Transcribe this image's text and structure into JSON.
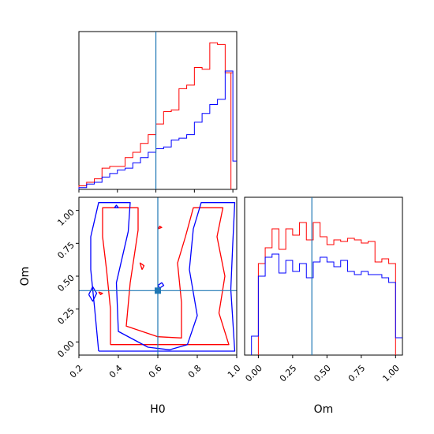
{
  "colors": {
    "red": "#ff0000",
    "blue": "#0000ff",
    "truth": "#1f77b4"
  },
  "chart_data": [
    {
      "type": "step-histogram",
      "panel": "H0 marginal",
      "title": "",
      "xlabel": "",
      "ylabel": "",
      "xlim": [
        0.2,
        1.02
      ],
      "truth_x": 0.6,
      "bin_edges": [
        0.2,
        0.24,
        0.28,
        0.32,
        0.36,
        0.4,
        0.44,
        0.48,
        0.52,
        0.56,
        0.6,
        0.64,
        0.68,
        0.72,
        0.76,
        0.8,
        0.84,
        0.88,
        0.92,
        0.96,
        1.0
      ],
      "series": [
        {
          "color": "red",
          "values": [
            2,
            4,
            6,
            12,
            13,
            13,
            18,
            21,
            26,
            31,
            37,
            44,
            45,
            57,
            59,
            69,
            68,
            83,
            82,
            66
          ]
        },
        {
          "color": "blue",
          "values": [
            1,
            3,
            4,
            7,
            9,
            11,
            12,
            15,
            18,
            21,
            23,
            24,
            28,
            29,
            31,
            38,
            43,
            48,
            51,
            67
          ]
        }
      ],
      "tail": {
        "red_edge_x": 0.99,
        "blue_tail_x": [
          1.0,
          1.02
        ],
        "blue_tail_value": 16
      }
    },
    {
      "type": "contour",
      "panel": "H0 vs Om",
      "xlabel": "H0",
      "ylabel": "Om",
      "xlim": [
        0.2,
        1.0
      ],
      "ylim": [
        -0.1,
        1.1
      ],
      "xticks": [
        "0.2",
        "0.4",
        "0.6",
        "0.8",
        "1.0"
      ],
      "yticks": [
        "0.00",
        "0.25",
        "0.50",
        "0.75",
        "1.00"
      ],
      "truth": {
        "x": 0.6,
        "y": 0.39
      },
      "contours": [
        {
          "color": "red",
          "points": [
            [
              0.36,
              -0.02
            ],
            [
              0.36,
              0.25
            ],
            [
              0.34,
              0.55
            ],
            [
              0.32,
              0.8
            ],
            [
              0.32,
              1.02
            ],
            [
              0.5,
              1.02
            ],
            [
              0.5,
              0.85
            ],
            [
              0.46,
              0.45
            ],
            [
              0.44,
              0.12
            ],
            [
              0.6,
              0.04
            ],
            [
              0.72,
              0.03
            ],
            [
              0.72,
              0.3
            ],
            [
              0.7,
              0.6
            ],
            [
              0.74,
              0.8
            ],
            [
              0.78,
              1.02
            ],
            [
              0.93,
              1.02
            ],
            [
              0.9,
              0.8
            ],
            [
              0.94,
              0.5
            ],
            [
              0.91,
              0.22
            ],
            [
              0.96,
              -0.02
            ],
            [
              0.36,
              -0.02
            ]
          ]
        },
        {
          "color": "red",
          "points": [
            [
              0.3,
              0.38
            ],
            [
              0.32,
              0.37
            ],
            [
              0.31,
              0.36
            ],
            [
              0.3,
              0.38
            ]
          ]
        },
        {
          "color": "red",
          "points": [
            [
              0.52,
              0.55
            ],
            [
              0.53,
              0.58
            ],
            [
              0.51,
              0.6
            ],
            [
              0.52,
              0.55
            ]
          ]
        },
        {
          "color": "red",
          "points": [
            [
              0.6,
              0.86
            ],
            [
              0.62,
              0.87
            ],
            [
              0.61,
              0.88
            ],
            [
              0.6,
              0.86
            ]
          ]
        },
        {
          "color": "blue",
          "points": [
            [
              0.3,
              -0.07
            ],
            [
              0.28,
              0.25
            ],
            [
              0.26,
              0.55
            ],
            [
              0.26,
              0.8
            ],
            [
              0.3,
              1.06
            ],
            [
              0.46,
              1.06
            ],
            [
              0.45,
              0.84
            ],
            [
              0.39,
              0.45
            ],
            [
              0.4,
              0.08
            ],
            [
              0.55,
              -0.04
            ],
            [
              0.66,
              -0.06
            ],
            [
              0.75,
              -0.02
            ],
            [
              0.8,
              0.2
            ],
            [
              0.76,
              0.55
            ],
            [
              0.78,
              0.86
            ],
            [
              0.82,
              1.06
            ],
            [
              0.99,
              1.06
            ],
            [
              0.98,
              0.75
            ],
            [
              0.97,
              0.4
            ],
            [
              0.99,
              -0.07
            ],
            [
              0.3,
              -0.07
            ]
          ]
        },
        {
          "color": "blue",
          "points": [
            [
              0.25,
              0.36
            ],
            [
              0.27,
              0.42
            ],
            [
              0.29,
              0.37
            ],
            [
              0.27,
              0.31
            ],
            [
              0.25,
              0.36
            ]
          ]
        },
        {
          "color": "blue",
          "points": [
            [
              0.6,
              0.43
            ],
            [
              0.62,
              0.45
            ],
            [
              0.63,
              0.43
            ],
            [
              0.61,
              0.41
            ],
            [
              0.6,
              0.43
            ]
          ]
        },
        {
          "color": "blue",
          "points": [
            [
              0.38,
              1.02
            ],
            [
              0.39,
              1.04
            ],
            [
              0.4,
              1.02
            ],
            [
              0.38,
              1.02
            ]
          ]
        }
      ]
    },
    {
      "type": "step-histogram",
      "panel": "Om marginal",
      "xlabel": "Om",
      "xlim": [
        -0.1,
        1.05
      ],
      "xticks": [
        "0.00",
        "0.25",
        "0.50",
        "0.75",
        "1.00"
      ],
      "truth_x": 0.39,
      "bin_edges": [
        0.0,
        0.05,
        0.1,
        0.15,
        0.2,
        0.25,
        0.3,
        0.35,
        0.4,
        0.45,
        0.5,
        0.55,
        0.6,
        0.65,
        0.7,
        0.75,
        0.8,
        0.85,
        0.9,
        0.95,
        1.0
      ],
      "series": [
        {
          "color": "red",
          "values": [
            58,
            68,
            80,
            67,
            80,
            76,
            84,
            73,
            84,
            75,
            70,
            73,
            72,
            74,
            73,
            71,
            72,
            59,
            61,
            58
          ]
        },
        {
          "color": "blue",
          "values": [
            50,
            62,
            64,
            52,
            60,
            53,
            58,
            49,
            59,
            62,
            59,
            56,
            60,
            53,
            51,
            53,
            51,
            51,
            49,
            46
          ]
        }
      ],
      "tail": {
        "blue_pre": {
          "x": [
            -0.05,
            0.0
          ],
          "value": 12
        },
        "blue_post": {
          "x": [
            1.0,
            1.05
          ],
          "value": 11
        }
      }
    }
  ]
}
